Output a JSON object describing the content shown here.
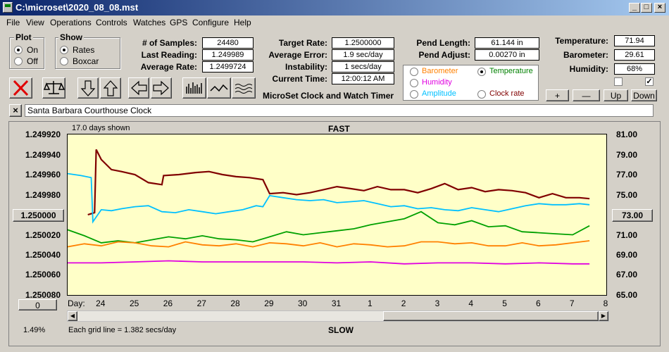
{
  "window": {
    "title": "C:\\microset\\2020_08_08.mst"
  },
  "menu": [
    "File",
    "View",
    "Operations",
    "Controls",
    "Watches",
    "GPS",
    "Configure",
    "Help"
  ],
  "plot_group": {
    "title": "Plot",
    "options": [
      "On",
      "Off"
    ],
    "selected": "On"
  },
  "show_group": {
    "title": "Show",
    "options": [
      "Rates",
      "Boxcar"
    ],
    "selected": "Rates"
  },
  "stats": {
    "samples_label": "# of Samples:",
    "samples": "24480",
    "last_label": "Last Reading:",
    "last": "1.249989",
    "avg_label": "Average Rate:",
    "avg": "1.2499724"
  },
  "rates": {
    "target_label": "Target Rate:",
    "target": "1.2500000",
    "error_label": "Average Error:",
    "error": "1.9 sec/day",
    "instab_label": "Instability:",
    "instab": "1 secs/day",
    "time_label": "Current Time:",
    "time": "12:00:12 AM"
  },
  "app_title": "MicroSet Clock and Watch Timer",
  "pendulum": {
    "length_label": "Pend Length:",
    "length": "61.144 in",
    "adjust_label": "Pend Adjust:",
    "adjust": "0.00270 in"
  },
  "sensor_options": {
    "barometer": "Barometer",
    "temperature": "Temperature",
    "humidity": "Humidity",
    "amplitude": "Amplitude",
    "clock_rate": "Clock rate",
    "selected": "Temperature"
  },
  "env": {
    "temp_label": "Temperature:",
    "temp": "71.94",
    "baro_label": "Barometer:",
    "baro": "29.61",
    "hum_label": "Humidity:",
    "hum": "68%"
  },
  "adjust_buttons": {
    "plus": "+",
    "minus": "—",
    "up": "Up",
    "down": "Down"
  },
  "clock_name": "Santa Barbara Courthouse Clock",
  "close_x": "×",
  "chart": {
    "days_shown": "17.0 days shown",
    "top_label": "FAST",
    "bottom_label": "SLOW",
    "day_label": "Day:",
    "grid_note": "Each grid line = 1.382 secs/day",
    "percent": "1.49%",
    "left_center_btn": "1.250000",
    "right_center_btn": "73.00",
    "bottom_btn": "0"
  },
  "colors": {
    "rate": "#800000",
    "temperature": "#00c0ff",
    "green": "#00a000",
    "orange": "#ff8000",
    "magenta": "#e000e0",
    "plot_bg": "#ffffc8"
  },
  "chart_data": {
    "type": "line",
    "title": "",
    "xlabel": "Day:",
    "x_ticks": [
      "24",
      "25",
      "26",
      "27",
      "28",
      "29",
      "30",
      "31",
      "1",
      "2",
      "3",
      "4",
      "5",
      "6",
      "7",
      "8"
    ],
    "y_left_ticks": [
      "1.249920",
      "1.249940",
      "1.249960",
      "1.249980",
      "1.250000",
      "1.250020",
      "1.250040",
      "1.250060",
      "1.250080"
    ],
    "y_left_lim": [
      1.24992,
      1.25008
    ],
    "y_right_ticks": [
      "81.00",
      "79.00",
      "77.00",
      "75.00",
      "73.00",
      "71.00",
      "69.00",
      "67.00",
      "65.00"
    ],
    "y_right_lim": [
      65,
      81
    ],
    "grid": false,
    "series": [
      {
        "axis": "left",
        "color": "#800000",
        "x": [
          23.6,
          23.8,
          23.85,
          24.0,
          24.3,
          24.6,
          25.0,
          25.4,
          25.8,
          25.85,
          26.3,
          26.8,
          27.2,
          27.6,
          28.0,
          28.4,
          28.8,
          29.0,
          29.4,
          29.8,
          30.2,
          30.6,
          31.0,
          31.4,
          31.8,
          32.2,
          32.6,
          33.0,
          33.4,
          33.8,
          34.2,
          34.6,
          35.0,
          35.4,
          35.8,
          36.2,
          36.6,
          37.0,
          37.4,
          37.8,
          38.2,
          38.5
        ],
        "y": [
          1.25,
          1.249998,
          1.249935,
          1.249945,
          1.249955,
          1.249957,
          1.24996,
          1.249968,
          1.24997,
          1.249961,
          1.24996,
          1.249958,
          1.249957,
          1.24996,
          1.249962,
          1.249963,
          1.249965,
          1.249979,
          1.249978,
          1.24998,
          1.249978,
          1.249975,
          1.249972,
          1.249974,
          1.249976,
          1.249972,
          1.249975,
          1.249975,
          1.249978,
          1.249974,
          1.249969,
          1.249975,
          1.249973,
          1.249977,
          1.249975,
          1.249976,
          1.249978,
          1.249983,
          1.249979,
          1.249983,
          1.249983,
          1.249984
        ]
      },
      {
        "axis": "right",
        "color": "#00c0ff",
        "x": [
          23.0,
          23.4,
          23.7,
          23.75,
          24.0,
          24.3,
          24.6,
          25.0,
          25.4,
          25.8,
          26.2,
          26.6,
          27.0,
          27.4,
          27.8,
          28.2,
          28.6,
          28.8,
          29.0,
          29.4,
          29.8,
          30.2,
          30.6,
          31.0,
          31.4,
          31.8,
          32.2,
          32.6,
          33.0,
          33.4,
          33.8,
          34.2,
          34.6,
          35.0,
          35.4,
          35.8,
          36.2,
          36.6,
          37.0,
          37.4,
          37.8,
          38.2,
          38.5
        ],
        "y": [
          77.1,
          76.9,
          76.7,
          72.3,
          73.5,
          73.4,
          73.6,
          73.8,
          73.9,
          73.3,
          73.2,
          73.5,
          73.3,
          73.1,
          73.3,
          73.5,
          73.9,
          73.8,
          74.9,
          74.7,
          74.5,
          74.4,
          74.5,
          74.2,
          74.3,
          74.4,
          74.1,
          73.8,
          73.9,
          73.6,
          73.7,
          73.5,
          73.4,
          73.7,
          73.5,
          73.3,
          73.6,
          73.9,
          74.1,
          74.0,
          74.0,
          74.1,
          74.0
        ]
      },
      {
        "axis": "right",
        "color": "#00a000",
        "x": [
          23.0,
          23.5,
          24.0,
          24.5,
          25.0,
          25.5,
          26.0,
          26.5,
          27.0,
          27.5,
          28.0,
          28.5,
          29.0,
          29.5,
          30.0,
          30.5,
          31.0,
          31.5,
          32.0,
          32.5,
          33.0,
          33.5,
          34.0,
          34.5,
          35.0,
          35.5,
          36.0,
          36.5,
          37.0,
          37.5,
          38.0,
          38.5
        ],
        "y": [
          71.5,
          70.9,
          70.2,
          70.4,
          70.2,
          70.5,
          70.8,
          70.6,
          70.9,
          70.6,
          70.5,
          70.3,
          70.8,
          71.3,
          71.0,
          71.2,
          71.4,
          71.6,
          72.0,
          72.3,
          72.6,
          73.3,
          72.2,
          72.0,
          72.4,
          71.8,
          71.9,
          71.3,
          71.2,
          71.1,
          71.0,
          71.9
        ]
      },
      {
        "axis": "right",
        "color": "#ff8000",
        "x": [
          23.0,
          23.5,
          24.0,
          24.5,
          25.0,
          25.5,
          26.0,
          26.5,
          27.0,
          27.5,
          28.0,
          28.5,
          29.0,
          29.5,
          30.0,
          30.5,
          31.0,
          31.5,
          32.0,
          32.5,
          33.0,
          33.5,
          34.0,
          34.5,
          35.0,
          35.5,
          36.0,
          36.5,
          37.0,
          37.5,
          38.0,
          38.5
        ],
        "y": [
          69.8,
          70.1,
          69.9,
          70.3,
          70.2,
          69.9,
          69.8,
          70.3,
          70.0,
          69.9,
          70.1,
          69.8,
          70.2,
          70.1,
          69.9,
          70.2,
          69.8,
          70.1,
          70.0,
          69.8,
          69.9,
          70.3,
          70.3,
          70.1,
          70.2,
          69.9,
          69.9,
          70.2,
          69.9,
          70.0,
          70.2,
          70.4
        ]
      },
      {
        "axis": "right",
        "color": "#e000e0",
        "x": [
          23.0,
          24.0,
          25.0,
          26.0,
          27.0,
          28.0,
          29.0,
          30.0,
          31.0,
          32.0,
          33.0,
          34.0,
          35.0,
          36.0,
          37.0,
          38.0,
          38.5
        ],
        "y": [
          68.2,
          68.2,
          68.3,
          68.4,
          68.3,
          68.3,
          68.3,
          68.3,
          68.2,
          68.3,
          68.1,
          68.2,
          68.2,
          68.1,
          68.2,
          68.1,
          68.1
        ]
      }
    ]
  }
}
